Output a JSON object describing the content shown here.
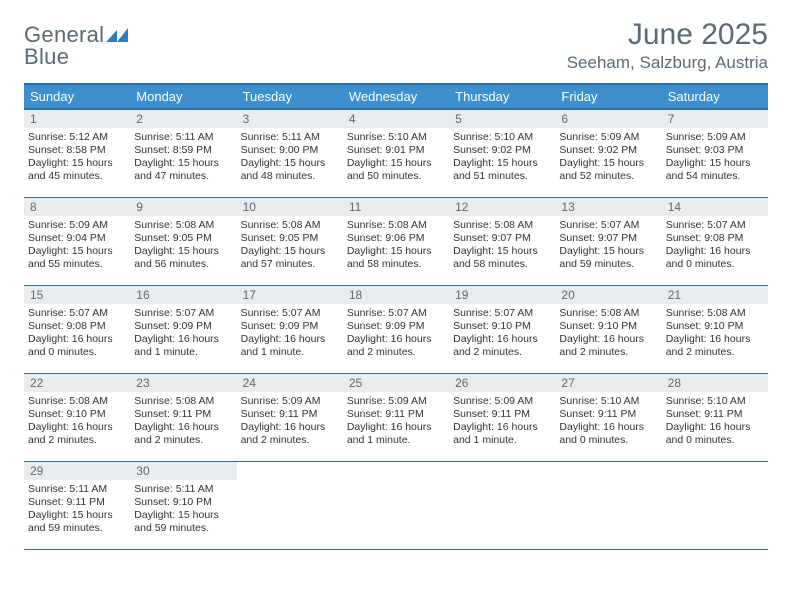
{
  "logo": {
    "line1": "General",
    "line2": "Blue",
    "color_gray": "#5a6a78",
    "color_blue": "#2d7dc0"
  },
  "title": "June 2025",
  "location": "Seeham, Salzburg, Austria",
  "colors": {
    "header_bg": "#3d8fce",
    "header_border": "#2e6fa3",
    "daynum_bg": "#e9ecee",
    "text_gray": "#5a6a78",
    "body_text": "#333333",
    "page_bg": "#ffffff"
  },
  "typography": {
    "title_fontsize": 30,
    "location_fontsize": 17,
    "weekday_fontsize": 13,
    "daynum_fontsize": 12,
    "body_fontsize": 10.5
  },
  "weekdays": [
    "Sunday",
    "Monday",
    "Tuesday",
    "Wednesday",
    "Thursday",
    "Friday",
    "Saturday"
  ],
  "days": [
    {
      "n": "1",
      "sunrise": "5:12 AM",
      "sunset": "8:58 PM",
      "daylight": "15 hours and 45 minutes."
    },
    {
      "n": "2",
      "sunrise": "5:11 AM",
      "sunset": "8:59 PM",
      "daylight": "15 hours and 47 minutes."
    },
    {
      "n": "3",
      "sunrise": "5:11 AM",
      "sunset": "9:00 PM",
      "daylight": "15 hours and 48 minutes."
    },
    {
      "n": "4",
      "sunrise": "5:10 AM",
      "sunset": "9:01 PM",
      "daylight": "15 hours and 50 minutes."
    },
    {
      "n": "5",
      "sunrise": "5:10 AM",
      "sunset": "9:02 PM",
      "daylight": "15 hours and 51 minutes."
    },
    {
      "n": "6",
      "sunrise": "5:09 AM",
      "sunset": "9:02 PM",
      "daylight": "15 hours and 52 minutes."
    },
    {
      "n": "7",
      "sunrise": "5:09 AM",
      "sunset": "9:03 PM",
      "daylight": "15 hours and 54 minutes."
    },
    {
      "n": "8",
      "sunrise": "5:09 AM",
      "sunset": "9:04 PM",
      "daylight": "15 hours and 55 minutes."
    },
    {
      "n": "9",
      "sunrise": "5:08 AM",
      "sunset": "9:05 PM",
      "daylight": "15 hours and 56 minutes."
    },
    {
      "n": "10",
      "sunrise": "5:08 AM",
      "sunset": "9:05 PM",
      "daylight": "15 hours and 57 minutes."
    },
    {
      "n": "11",
      "sunrise": "5:08 AM",
      "sunset": "9:06 PM",
      "daylight": "15 hours and 58 minutes."
    },
    {
      "n": "12",
      "sunrise": "5:08 AM",
      "sunset": "9:07 PM",
      "daylight": "15 hours and 58 minutes."
    },
    {
      "n": "13",
      "sunrise": "5:07 AM",
      "sunset": "9:07 PM",
      "daylight": "15 hours and 59 minutes."
    },
    {
      "n": "14",
      "sunrise": "5:07 AM",
      "sunset": "9:08 PM",
      "daylight": "16 hours and 0 minutes."
    },
    {
      "n": "15",
      "sunrise": "5:07 AM",
      "sunset": "9:08 PM",
      "daylight": "16 hours and 0 minutes."
    },
    {
      "n": "16",
      "sunrise": "5:07 AM",
      "sunset": "9:09 PM",
      "daylight": "16 hours and 1 minute."
    },
    {
      "n": "17",
      "sunrise": "5:07 AM",
      "sunset": "9:09 PM",
      "daylight": "16 hours and 1 minute."
    },
    {
      "n": "18",
      "sunrise": "5:07 AM",
      "sunset": "9:09 PM",
      "daylight": "16 hours and 2 minutes."
    },
    {
      "n": "19",
      "sunrise": "5:07 AM",
      "sunset": "9:10 PM",
      "daylight": "16 hours and 2 minutes."
    },
    {
      "n": "20",
      "sunrise": "5:08 AM",
      "sunset": "9:10 PM",
      "daylight": "16 hours and 2 minutes."
    },
    {
      "n": "21",
      "sunrise": "5:08 AM",
      "sunset": "9:10 PM",
      "daylight": "16 hours and 2 minutes."
    },
    {
      "n": "22",
      "sunrise": "5:08 AM",
      "sunset": "9:10 PM",
      "daylight": "16 hours and 2 minutes."
    },
    {
      "n": "23",
      "sunrise": "5:08 AM",
      "sunset": "9:11 PM",
      "daylight": "16 hours and 2 minutes."
    },
    {
      "n": "24",
      "sunrise": "5:09 AM",
      "sunset": "9:11 PM",
      "daylight": "16 hours and 2 minutes."
    },
    {
      "n": "25",
      "sunrise": "5:09 AM",
      "sunset": "9:11 PM",
      "daylight": "16 hours and 1 minute."
    },
    {
      "n": "26",
      "sunrise": "5:09 AM",
      "sunset": "9:11 PM",
      "daylight": "16 hours and 1 minute."
    },
    {
      "n": "27",
      "sunrise": "5:10 AM",
      "sunset": "9:11 PM",
      "daylight": "16 hours and 0 minutes."
    },
    {
      "n": "28",
      "sunrise": "5:10 AM",
      "sunset": "9:11 PM",
      "daylight": "16 hours and 0 minutes."
    },
    {
      "n": "29",
      "sunrise": "5:11 AM",
      "sunset": "9:11 PM",
      "daylight": "15 hours and 59 minutes."
    },
    {
      "n": "30",
      "sunrise": "5:11 AM",
      "sunset": "9:10 PM",
      "daylight": "15 hours and 59 minutes."
    }
  ],
  "labels": {
    "sunrise_prefix": "Sunrise: ",
    "sunset_prefix": "Sunset: ",
    "daylight_prefix": "Daylight: "
  },
  "grid": {
    "rows": 5,
    "cols": 7,
    "start_weekday": 0
  }
}
